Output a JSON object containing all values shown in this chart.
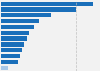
{
  "values": [
    96,
    78,
    52,
    40,
    35,
    30,
    27,
    24,
    22,
    20,
    18,
    8
  ],
  "bar_color": "#1a6fba",
  "last_bar_color": "#a8c8e8",
  "background_color": "#f2f2f2",
  "dashed_line_x": 78,
  "ylim": [
    -0.5,
    11.5
  ],
  "xlim": [
    0,
    102
  ]
}
